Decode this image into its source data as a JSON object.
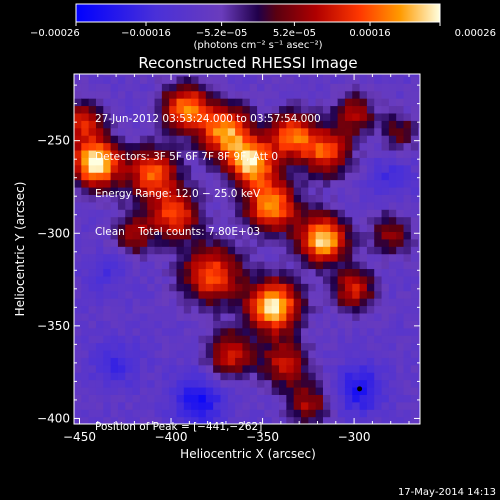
{
  "chart_data": {
    "type": "heatmap",
    "title": "Reconstructed RHESSI Image",
    "xlabel": "Heliocentric X (arcsec)",
    "ylabel": "Heliocentric Y (arcsec)",
    "xlim": [
      -453,
      -264
    ],
    "ylim": [
      -403,
      -214
    ],
    "x_ticks": [
      -450,
      -400,
      -350,
      -300
    ],
    "y_ticks": [
      -400,
      -350,
      -300,
      -250
    ],
    "x_tick_labels": [
      "−450",
      "−400",
      "−350",
      "−300"
    ],
    "y_tick_labels": [
      "−400",
      "−350",
      "−300",
      "−250"
    ],
    "colorbar": {
      "range": [
        -0.00026,
        0.00026
      ],
      "tick_values": [
        -0.00026,
        -0.00016,
        -5.2e-05,
        5.2e-05,
        0.00016,
        0.00026
      ],
      "tick_labels": [
        "−0.00026",
        "−0.00016",
        "−5.2e−05",
        "5.2e−05",
        "0.00016",
        "0.00026"
      ],
      "units_label": "(photons cm⁻² s⁻¹ asec⁻²)"
    },
    "annotations": {
      "time_range": "27‑Jun‑2012 03:53:24.000 to 03:57:54.000",
      "detectors": "Detectors: 3F 5F 6F 7F 8F 9F, Att 0",
      "energy_range": "Energy Range: 12.0 − 25.0 keV",
      "clean": "Clean    Total counts: 7.80E+03",
      "peak": "Position of Peak = [−441,−262]"
    },
    "peak": {
      "x": -441,
      "y": -262
    },
    "peak_marker": {
      "x": -297,
      "y": -384
    },
    "grid": false,
    "legend": "none",
    "hot_spots": [
      {
        "x": -441,
        "y": -262,
        "amp": 1.0,
        "sigma": 9
      },
      {
        "x": -448,
        "y": -240,
        "amp": 0.55,
        "sigma": 8
      },
      {
        "x": -410,
        "y": -268,
        "amp": 0.7,
        "sigma": 10
      },
      {
        "x": -392,
        "y": -232,
        "amp": 0.75,
        "sigma": 9
      },
      {
        "x": -370,
        "y": -245,
        "amp": 0.8,
        "sigma": 10
      },
      {
        "x": -356,
        "y": -262,
        "amp": 0.85,
        "sigma": 9
      },
      {
        "x": -345,
        "y": -285,
        "amp": 0.8,
        "sigma": 10
      },
      {
        "x": -334,
        "y": -247,
        "amp": 0.7,
        "sigma": 9
      },
      {
        "x": -315,
        "y": -256,
        "amp": 0.65,
        "sigma": 9
      },
      {
        "x": -300,
        "y": -235,
        "amp": 0.45,
        "sigma": 8
      },
      {
        "x": -317,
        "y": -303,
        "amp": 0.95,
        "sigma": 9
      },
      {
        "x": -300,
        "y": -330,
        "amp": 0.55,
        "sigma": 8
      },
      {
        "x": -344,
        "y": -339,
        "amp": 0.95,
        "sigma": 10
      },
      {
        "x": -378,
        "y": -322,
        "amp": 0.7,
        "sigma": 11
      },
      {
        "x": -397,
        "y": -290,
        "amp": 0.65,
        "sigma": 9
      },
      {
        "x": -420,
        "y": -300,
        "amp": 0.45,
        "sigma": 8
      },
      {
        "x": -368,
        "y": -365,
        "amp": 0.55,
        "sigma": 9
      },
      {
        "x": -338,
        "y": -370,
        "amp": 0.5,
        "sigma": 9
      },
      {
        "x": -325,
        "y": -392,
        "amp": 0.45,
        "sigma": 8
      },
      {
        "x": -280,
        "y": -300,
        "amp": 0.4,
        "sigma": 8
      },
      {
        "x": -275,
        "y": -245,
        "amp": 0.35,
        "sigma": 7
      }
    ],
    "cold_spots": [
      {
        "x": -385,
        "y": -390,
        "amp": 0.6,
        "sigma": 10
      },
      {
        "x": -297,
        "y": -384,
        "amp": 0.55,
        "sigma": 9
      },
      {
        "x": -430,
        "y": -370,
        "amp": 0.35,
        "sigma": 9
      },
      {
        "x": -280,
        "y": -270,
        "amp": 0.3,
        "sigma": 8
      },
      {
        "x": -435,
        "y": -320,
        "amp": 0.25,
        "sigma": 8
      }
    ]
  },
  "footer": {
    "timestamp": "17‑May‑2014 14:13"
  }
}
